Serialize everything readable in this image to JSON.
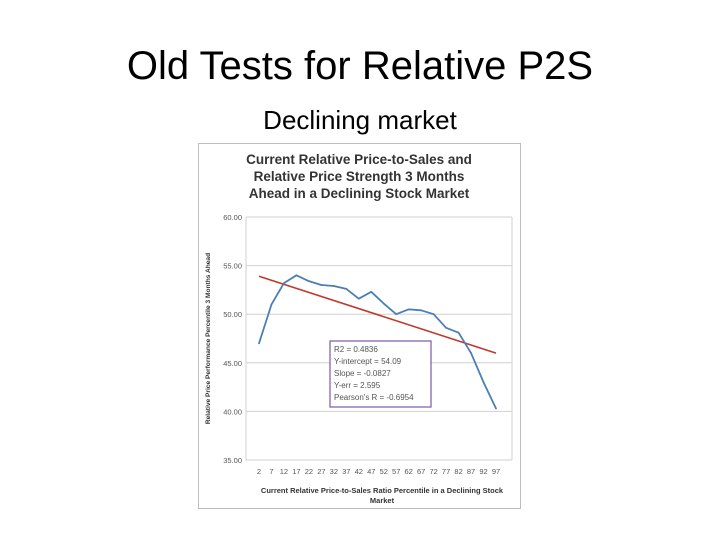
{
  "slide": {
    "title": "Old Tests for Relative P2S",
    "subtitle": "Declining market"
  },
  "colors": {
    "series_line": "#4a7fb5",
    "trend_line": "#c0392b",
    "stats_box_border": "#7b5aa6",
    "grid": "#d0d0d0",
    "title_text": "#333333"
  },
  "chart_data": {
    "type": "line",
    "title_lines": [
      "Current Relative Price-to-Sales and",
      "Relative Price Strength 3 Months",
      "Ahead in a Declining Stock Market"
    ],
    "xlabel_lines": [
      "Current Relative Price-to-Sales Ratio Percentile in a Declining Stock",
      "Market"
    ],
    "ylabel": "Relative Price Performance Percentile 3 Months Ahead",
    "ylim": [
      35,
      60
    ],
    "yticks": [
      "35.00",
      "40.00",
      "45.00",
      "50.00",
      "55.00",
      "60.00"
    ],
    "grid": true,
    "x": [
      2,
      7,
      12,
      17,
      22,
      27,
      32,
      37,
      42,
      47,
      52,
      57,
      62,
      67,
      72,
      77,
      82,
      87,
      92,
      97
    ],
    "series": [
      {
        "values": [
          47.0,
          51.0,
          53.2,
          54.0,
          53.4,
          53.0,
          52.9,
          52.6,
          51.6,
          52.3,
          51.1,
          50.0,
          50.5,
          50.4,
          50.0,
          48.6,
          48.1,
          46.0,
          43.0,
          40.3
        ]
      }
    ],
    "trendline": {
      "start": [
        2,
        53.9
      ],
      "end": [
        97,
        46.0
      ]
    },
    "annotation_lines": [
      "R2 = 0.4836",
      "Y-intercept = 54.09",
      "Slope = -0.0827",
      "Y-err = 2.595",
      "Pearson's R = -0.6954"
    ]
  }
}
